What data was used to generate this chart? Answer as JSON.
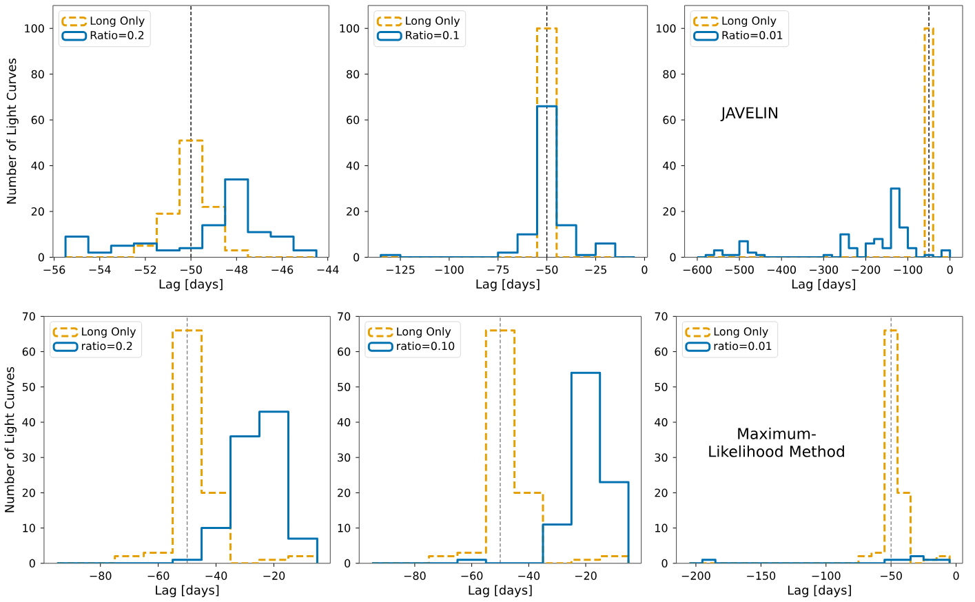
{
  "chart_data": [
    {
      "type": "histogram",
      "xlabel": "Lag [days]",
      "ylabel": "Number of Light Curves",
      "legend": "top left",
      "xlim": [
        -56.05,
        -43.95
      ],
      "ylim": [
        0,
        110
      ],
      "xticks": [
        {
          "value": -56,
          "label": "−56"
        },
        {
          "value": -54,
          "label": "−54"
        },
        {
          "value": -52,
          "label": "−52"
        },
        {
          "value": -50,
          "label": "−50"
        },
        {
          "value": -48,
          "label": "−48"
        },
        {
          "value": -46,
          "label": "−46"
        },
        {
          "value": -44,
          "label": "−44"
        }
      ],
      "yticks": [
        0,
        20,
        40,
        60,
        80,
        100
      ],
      "bins": [
        -55.5,
        -54.5,
        -53.5,
        -52.5,
        -51.5,
        -50.5,
        -49.5,
        -48.5,
        -47.5,
        -46.5,
        -45.5,
        -44.5
      ],
      "series": [
        {
          "name": "Long Only",
          "color": "#e69f00",
          "line_style": "dashed",
          "values": [
            0,
            0,
            0,
            5,
            19,
            51,
            22,
            3,
            0,
            0,
            0
          ]
        },
        {
          "name": "Ratio=0.2",
          "color": "#0072b2",
          "line_style": "solid",
          "values": [
            9,
            2,
            5,
            6,
            3,
            4,
            14,
            34,
            11,
            9,
            3
          ]
        }
      ],
      "ref_lines": [
        {
          "axis": "x",
          "value": -50,
          "color": "#000000",
          "line_style": "dashed"
        }
      ]
    },
    {
      "type": "histogram",
      "xlabel": "Lag [days]",
      "legend": "top left",
      "xlim": [
        -141.5,
        1.5
      ],
      "ylim": [
        0,
        110
      ],
      "xticks": [
        {
          "value": -125,
          "label": "−125"
        },
        {
          "value": -100,
          "label": "−100"
        },
        {
          "value": -75,
          "label": "−75"
        },
        {
          "value": -50,
          "label": "−50"
        },
        {
          "value": -25,
          "label": "−25"
        },
        0
      ],
      "yticks": [
        0,
        20,
        40,
        60,
        80,
        100
      ],
      "bins": [
        -135,
        -125,
        -115,
        -105,
        -95,
        -85,
        -75,
        -65,
        -55,
        -45,
        -35,
        -25,
        -15,
        -5
      ],
      "series": [
        {
          "name": "Long Only",
          "color": "#e69f00",
          "line_style": "dashed",
          "values": [
            0,
            0,
            0,
            0,
            0,
            0,
            0,
            0,
            100,
            0,
            0,
            0,
            0
          ]
        },
        {
          "name": "Ratio=0.1",
          "color": "#0072b2",
          "line_style": "solid",
          "values": [
            1,
            0,
            0,
            0,
            0,
            0,
            2,
            10,
            66,
            14,
            1,
            6,
            0
          ]
        }
      ],
      "ref_lines": [
        {
          "axis": "x",
          "value": -50,
          "color": "#000000",
          "line_style": "dashed"
        }
      ]
    },
    {
      "type": "histogram",
      "xlabel": "Lag [days]",
      "legend": "top left",
      "xlim": [
        -630,
        30
      ],
      "ylim": [
        0,
        110
      ],
      "xticks": [
        {
          "value": -600,
          "label": "−600"
        },
        {
          "value": -500,
          "label": "−500"
        },
        {
          "value": -400,
          "label": "−400"
        },
        {
          "value": -300,
          "label": "−300"
        },
        {
          "value": -200,
          "label": "−200"
        },
        {
          "value": -100,
          "label": "−100"
        },
        0
      ],
      "yticks": [
        0,
        20,
        40,
        60,
        80,
        100
      ],
      "bins": [
        -600,
        -580,
        -560,
        -540,
        -520,
        -500,
        -480,
        -460,
        -440,
        -420,
        -400,
        -380,
        -360,
        -340,
        -320,
        -300,
        -280,
        -260,
        -240,
        -220,
        -200,
        -180,
        -160,
        -140,
        -120,
        -100,
        -80,
        -60,
        -40,
        -20,
        0
      ],
      "series": [
        {
          "name": "Long Only",
          "color": "#e69f00",
          "line_style": "dashed",
          "values": [
            0,
            0,
            0,
            0,
            0,
            0,
            0,
            0,
            0,
            0,
            0,
            0,
            0,
            0,
            0,
            0,
            0,
            0,
            0,
            0,
            0,
            0,
            0,
            0,
            0,
            0,
            0,
            100,
            0,
            0
          ]
        },
        {
          "name": "Ratio=0.01",
          "color": "#0072b2",
          "line_style": "solid",
          "values": [
            0,
            1,
            3,
            1,
            1,
            7,
            2,
            1,
            0,
            0,
            0,
            0,
            0,
            0,
            0,
            1,
            0,
            10,
            4,
            0,
            6,
            8,
            4,
            30,
            13,
            4,
            0,
            1,
            0,
            3
          ]
        }
      ],
      "ref_lines": [
        {
          "axis": "x",
          "value": -50,
          "color": "#000000",
          "line_style": "dashed"
        }
      ],
      "annotations": [
        "JAVELIN"
      ]
    },
    {
      "type": "histogram",
      "xlabel": "Lag [days]",
      "ylabel": "Number of Light Curves",
      "legend": "top left",
      "xlim": [
        -99.5,
        -0.5
      ],
      "ylim": [
        0,
        70
      ],
      "xticks": [
        {
          "value": -80,
          "label": "−80"
        },
        {
          "value": -60,
          "label": "−60"
        },
        {
          "value": -40,
          "label": "−40"
        },
        {
          "value": -20,
          "label": "−20"
        }
      ],
      "yticks": [
        0,
        10,
        20,
        30,
        40,
        50,
        60,
        70
      ],
      "bins": [
        -95,
        -85,
        -75,
        -65,
        -55,
        -45,
        -35,
        -25,
        -15,
        -5
      ],
      "series": [
        {
          "name": "Long Only",
          "color": "#e69f00",
          "line_style": "dashed",
          "values": [
            0,
            0,
            2,
            3,
            66,
            20,
            0,
            1,
            2
          ]
        },
        {
          "name": "ratio=0.2",
          "color": "#0072b2",
          "line_style": "solid",
          "values": [
            0,
            0,
            0,
            0,
            1,
            10,
            36,
            43,
            7
          ]
        }
      ],
      "ref_lines": [
        {
          "axis": "x",
          "value": -50,
          "color": "#808080",
          "line_style": "dashed"
        }
      ]
    },
    {
      "type": "histogram",
      "xlabel": "Lag [days]",
      "legend": "top left",
      "xlim": [
        -99.5,
        -0.5
      ],
      "ylim": [
        0,
        70
      ],
      "xticks": [
        {
          "value": -80,
          "label": "−80"
        },
        {
          "value": -60,
          "label": "−60"
        },
        {
          "value": -40,
          "label": "−40"
        },
        {
          "value": -20,
          "label": "−20"
        }
      ],
      "yticks": [
        0,
        10,
        20,
        30,
        40,
        50,
        60,
        70
      ],
      "bins": [
        -95,
        -85,
        -75,
        -65,
        -55,
        -45,
        -35,
        -25,
        -15,
        -5
      ],
      "series": [
        {
          "name": "Long Only",
          "color": "#e69f00",
          "line_style": "dashed",
          "values": [
            0,
            0,
            2,
            3,
            66,
            20,
            0,
            1,
            2
          ]
        },
        {
          "name": "ratio=0.10",
          "color": "#0072b2",
          "line_style": "solid",
          "values": [
            0,
            0,
            0,
            1,
            0,
            0,
            11,
            54,
            23
          ]
        }
      ],
      "ref_lines": [
        {
          "axis": "x",
          "value": -50,
          "color": "#808080",
          "line_style": "dashed"
        }
      ]
    },
    {
      "type": "histogram",
      "xlabel": "Lag [days]",
      "legend": "top left",
      "xlim": [
        -215,
        5
      ],
      "ylim": [
        0,
        70
      ],
      "xticks": [
        {
          "value": -200,
          "label": "−200"
        },
        {
          "value": -150,
          "label": "−150"
        },
        {
          "value": -100,
          "label": "−100"
        },
        {
          "value": -50,
          "label": "−50"
        },
        0
      ],
      "yticks": [
        0,
        10,
        20,
        30,
        40,
        50,
        60,
        70
      ],
      "bins": [
        -205,
        -195,
        -185,
        -175,
        -165,
        -155,
        -145,
        -135,
        -125,
        -115,
        -105,
        -95,
        -85,
        -75,
        -65,
        -55,
        -45,
        -35,
        -25,
        -15,
        -5
      ],
      "series": [
        {
          "name": "Long Only",
          "color": "#e69f00",
          "line_style": "dashed",
          "values": [
            0,
            0,
            0,
            0,
            0,
            0,
            0,
            0,
            0,
            0,
            0,
            0,
            0,
            2,
            3,
            66,
            20,
            0,
            1,
            2
          ]
        },
        {
          "name": "ratio=0.01",
          "color": "#0072b2",
          "line_style": "solid",
          "values": [
            0,
            1,
            0,
            0,
            0,
            0,
            0,
            0,
            0,
            0,
            0,
            0,
            0,
            0,
            0,
            1,
            1,
            2,
            1,
            1
          ]
        }
      ],
      "ref_lines": [
        {
          "axis": "x",
          "value": -50,
          "color": "#808080",
          "line_style": "dashed"
        }
      ],
      "annotations": [
        "Maximum-Likelihood Method"
      ]
    }
  ]
}
